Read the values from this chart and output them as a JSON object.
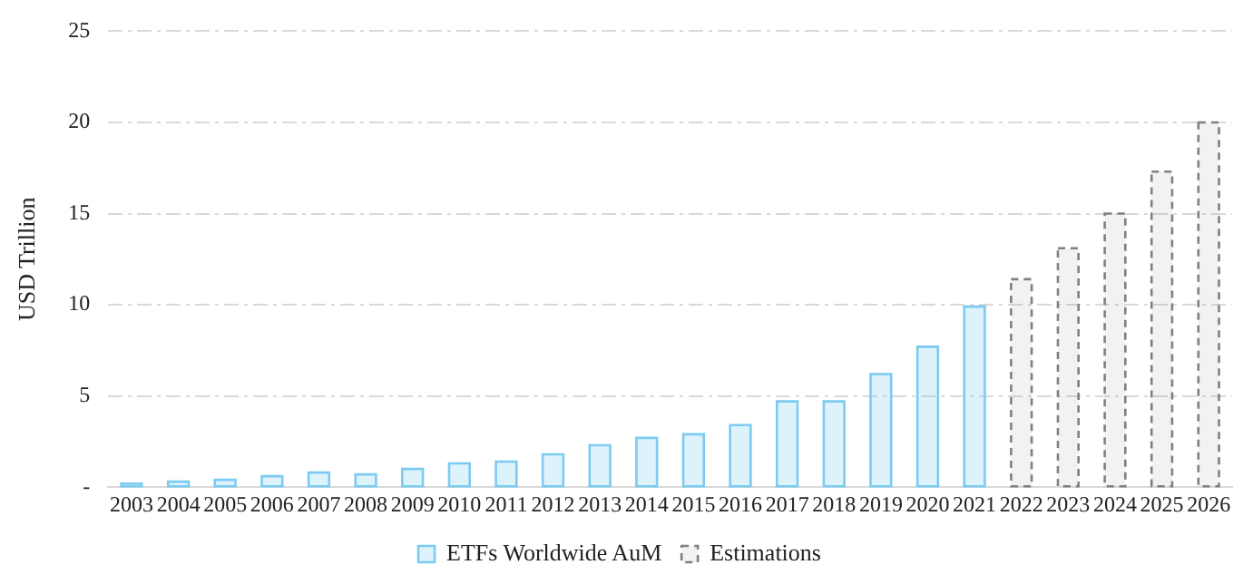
{
  "chart_data": {
    "type": "bar",
    "ylabel": "USD Trillion",
    "categories": [
      "2003",
      "2004",
      "2005",
      "2006",
      "2007",
      "2008",
      "2009",
      "2010",
      "2011",
      "2012",
      "2013",
      "2014",
      "2015",
      "2016",
      "2017",
      "2018",
      "2019",
      "2020",
      "2021",
      "2022",
      "2023",
      "2024",
      "2025",
      "2026"
    ],
    "series": [
      {
        "name": "ETFs Worldwide AuM",
        "color": "#7ccbf0",
        "line_style": "solid",
        "values": [
          0.2,
          0.3,
          0.4,
          0.6,
          0.8,
          0.7,
          1.0,
          1.3,
          1.4,
          1.8,
          2.3,
          2.7,
          2.9,
          3.4,
          4.7,
          4.7,
          6.2,
          7.7,
          9.9,
          null,
          null,
          null,
          null,
          null
        ]
      },
      {
        "name": "Estimations",
        "color": "#808080",
        "line_style": "dashed",
        "values": [
          null,
          null,
          null,
          null,
          null,
          null,
          null,
          null,
          null,
          null,
          null,
          null,
          null,
          null,
          null,
          null,
          null,
          null,
          null,
          11.4,
          13.1,
          15.0,
          17.3,
          20.0
        ]
      }
    ],
    "ylim": [
      0,
      25
    ],
    "yticks": [
      {
        "value": 0,
        "label": "-"
      },
      5,
      10,
      15,
      20,
      25
    ],
    "grid": "y",
    "legend": "bottom"
  }
}
